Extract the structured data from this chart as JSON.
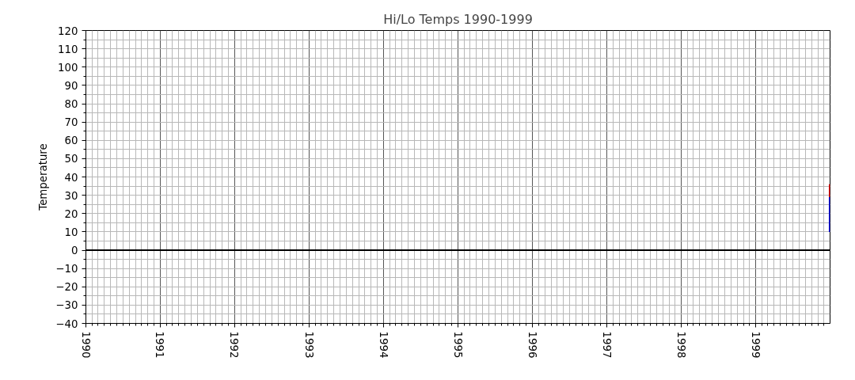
{
  "chart_data": {
    "type": "bar",
    "title": "Hi/Lo Temps 1990-1999",
    "ylabel": "Temperature",
    "x": [
      "1999-12-31"
    ],
    "series": [
      {
        "color": "#0000ff",
        "base": [
          10
        ],
        "values": [
          19
        ]
      },
      {
        "color": "#ff0000",
        "base": [
          29
        ],
        "values": [
          7
        ]
      }
    ],
    "xlim": [
      "1990-01-01",
      "1999-12-31"
    ],
    "xticks": [
      "1990",
      {
        "value": "1990-02",
        "label": null
      },
      {
        "value": "1990-03",
        "label": null
      },
      {
        "value": "1990-04",
        "label": null
      },
      {
        "value": "1990-05",
        "label": null
      },
      {
        "value": "1990-06",
        "label": null
      },
      {
        "value": "1990-07",
        "label": null
      },
      {
        "value": "1990-08",
        "label": null
      },
      {
        "value": "1990-09",
        "label": null
      },
      {
        "value": "1990-10",
        "label": null
      },
      {
        "value": "1990-11",
        "label": null
      },
      {
        "value": "1990-12",
        "label": null
      },
      "1991",
      {
        "value": "1991-02",
        "label": null
      },
      {
        "value": "1991-03",
        "label": null
      },
      {
        "value": "1991-04",
        "label": null
      },
      {
        "value": "1991-05",
        "label": null
      },
      {
        "value": "1991-06",
        "label": null
      },
      {
        "value": "1991-07",
        "label": null
      },
      {
        "value": "1991-08",
        "label": null
      },
      {
        "value": "1991-09",
        "label": null
      },
      {
        "value": "1991-10",
        "label": null
      },
      {
        "value": "1991-11",
        "label": null
      },
      {
        "value": "1991-12",
        "label": null
      },
      "1992",
      {
        "value": "1992-02",
        "label": null
      },
      {
        "value": "1992-03",
        "label": null
      },
      {
        "value": "1992-04",
        "label": null
      },
      {
        "value": "1992-05",
        "label": null
      },
      {
        "value": "1992-06",
        "label": null
      },
      {
        "value": "1992-07",
        "label": null
      },
      {
        "value": "1992-08",
        "label": null
      },
      {
        "value": "1992-09",
        "label": null
      },
      {
        "value": "1992-10",
        "label": null
      },
      {
        "value": "1992-11",
        "label": null
      },
      {
        "value": "1992-12",
        "label": null
      },
      "1993",
      {
        "value": "1993-02",
        "label": null
      },
      {
        "value": "1993-03",
        "label": null
      },
      {
        "value": "1993-04",
        "label": null
      },
      {
        "value": "1993-05",
        "label": null
      },
      {
        "value": "1993-06",
        "label": null
      },
      {
        "value": "1993-07",
        "label": null
      },
      {
        "value": "1993-08",
        "label": null
      },
      {
        "value": "1993-09",
        "label": null
      },
      {
        "value": "1993-10",
        "label": null
      },
      {
        "value": "1993-11",
        "label": null
      },
      {
        "value": "1993-12",
        "label": null
      },
      "1994",
      {
        "value": "1994-02",
        "label": null
      },
      {
        "value": "1994-03",
        "label": null
      },
      {
        "value": "1994-04",
        "label": null
      },
      {
        "value": "1994-05",
        "label": null
      },
      {
        "value": "1994-06",
        "label": null
      },
      {
        "value": "1994-07",
        "label": null
      },
      {
        "value": "1994-08",
        "label": null
      },
      {
        "value": "1994-09",
        "label": null
      },
      {
        "value": "1994-10",
        "label": null
      },
      {
        "value": "1994-11",
        "label": null
      },
      {
        "value": "1994-12",
        "label": null
      },
      "1995",
      {
        "value": "1995-02",
        "label": null
      },
      {
        "value": "1995-03",
        "label": null
      },
      {
        "value": "1995-04",
        "label": null
      },
      {
        "value": "1995-05",
        "label": null
      },
      {
        "value": "1995-06",
        "label": null
      },
      {
        "value": "1995-07",
        "label": null
      },
      {
        "value": "1995-08",
        "label": null
      },
      {
        "value": "1995-09",
        "label": null
      },
      {
        "value": "1995-10",
        "label": null
      },
      {
        "value": "1995-11",
        "label": null
      },
      {
        "value": "1995-12",
        "label": null
      },
      "1996",
      {
        "value": "1996-02",
        "label": null
      },
      {
        "value": "1996-03",
        "label": null
      },
      {
        "value": "1996-04",
        "label": null
      },
      {
        "value": "1996-05",
        "label": null
      },
      {
        "value": "1996-06",
        "label": null
      },
      {
        "value": "1996-07",
        "label": null
      },
      {
        "value": "1996-08",
        "label": null
      },
      {
        "value": "1996-09",
        "label": null
      },
      {
        "value": "1996-10",
        "label": null
      },
      {
        "value": "1996-11",
        "label": null
      },
      {
        "value": "1996-12",
        "label": null
      },
      "1997",
      {
        "value": "1997-02",
        "label": null
      },
      {
        "value": "1997-03",
        "label": null
      },
      {
        "value": "1997-04",
        "label": null
      },
      {
        "value": "1997-05",
        "label": null
      },
      {
        "value": "1997-06",
        "label": null
      },
      {
        "value": "1997-07",
        "label": null
      },
      {
        "value": "1997-08",
        "label": null
      },
      {
        "value": "1997-09",
        "label": null
      },
      {
        "value": "1997-10",
        "label": null
      },
      {
        "value": "1997-11",
        "label": null
      },
      {
        "value": "1997-12",
        "label": null
      },
      "1998",
      {
        "value": "1998-02",
        "label": null
      },
      {
        "value": "1998-03",
        "label": null
      },
      {
        "value": "1998-04",
        "label": null
      },
      {
        "value": "1998-05",
        "label": null
      },
      {
        "value": "1998-06",
        "label": null
      },
      {
        "value": "1998-07",
        "label": null
      },
      {
        "value": "1998-08",
        "label": null
      },
      {
        "value": "1998-09",
        "label": null
      },
      {
        "value": "1998-10",
        "label": null
      },
      {
        "value": "1998-11",
        "label": null
      },
      {
        "value": "1998-12",
        "label": null
      },
      "1999",
      {
        "value": "1999-02",
        "label": null
      },
      {
        "value": "1999-03",
        "label": null
      },
      {
        "value": "1999-04",
        "label": null
      },
      {
        "value": "1999-05",
        "label": null
      },
      {
        "value": "1999-06",
        "label": null
      },
      {
        "value": "1999-07",
        "label": null
      },
      {
        "value": "1999-08",
        "label": null
      },
      {
        "value": "1999-09",
        "label": null
      },
      {
        "value": "1999-10",
        "label": null
      },
      {
        "value": "1999-11",
        "label": null
      },
      {
        "value": "1999-12",
        "label": null
      }
    ],
    "ylim": [
      -40,
      120
    ],
    "yticks": [
      {
        "value": -40,
        "label": "−40"
      },
      {
        "value": -35,
        "label": null
      },
      {
        "value": -30,
        "label": "−30"
      },
      {
        "value": -25,
        "label": null
      },
      {
        "value": -20,
        "label": "−20"
      },
      {
        "value": -15,
        "label": null
      },
      {
        "value": -10,
        "label": "−10"
      },
      {
        "value": -5,
        "label": null
      },
      0,
      {
        "value": 5,
        "label": null
      },
      10,
      {
        "value": 15,
        "label": null
      },
      20,
      {
        "value": 25,
        "label": null
      },
      30,
      {
        "value": 35,
        "label": null
      },
      40,
      {
        "value": 45,
        "label": null
      },
      50,
      {
        "value": 55,
        "label": null
      },
      60,
      {
        "value": 65,
        "label": null
      },
      70,
      {
        "value": 75,
        "label": null
      },
      80,
      {
        "value": 85,
        "label": null
      },
      90,
      {
        "value": 95,
        "label": null
      },
      100,
      {
        "value": 105,
        "label": null
      },
      110,
      {
        "value": 115,
        "label": null
      },
      120
    ],
    "ref_lines": [
      {
        "axis": "y",
        "value": 0,
        "color": "#000000"
      }
    ],
    "grid": true
  }
}
